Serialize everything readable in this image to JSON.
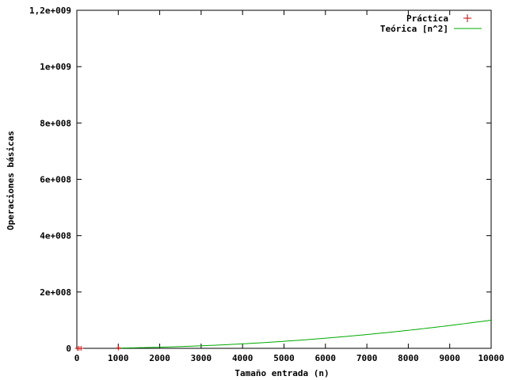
{
  "chart_data": {
    "type": "line",
    "title": "",
    "xlabel": "Tamaño entrada (n)",
    "ylabel": "Operaciones básicas",
    "xlim": [
      0,
      10000
    ],
    "ylim": [
      0,
      1200000000
    ],
    "x_ticks": [
      0,
      1000,
      2000,
      3000,
      4000,
      5000,
      6000,
      7000,
      8000,
      9000,
      10000
    ],
    "x_tick_labels": [
      "0",
      "1000",
      "2000",
      "3000",
      "4000",
      "5000",
      "6000",
      "7000",
      "8000",
      "9000",
      "10000"
    ],
    "y_ticks": [
      0,
      200000000,
      400000000,
      600000000,
      800000000,
      1000000000,
      1200000000
    ],
    "y_tick_labels": [
      "0",
      "2e+008",
      "4e+008",
      "6e+008",
      "8e+008",
      "1e+009",
      "1,2e+009"
    ],
    "grid": false,
    "legend_position": "top-right",
    "series": [
      {
        "name": "Práctica",
        "style": "points",
        "marker": "plus",
        "color": "#cc0000",
        "points": [
          [
            10,
            100
          ],
          [
            50,
            2500
          ],
          [
            100,
            10000
          ],
          [
            1000,
            1000000
          ]
        ]
      },
      {
        "name": "Teórica [n^2]",
        "style": "line",
        "function": "n^2",
        "color": "#00aa00",
        "x_range": [
          1000,
          10000
        ]
      }
    ]
  }
}
